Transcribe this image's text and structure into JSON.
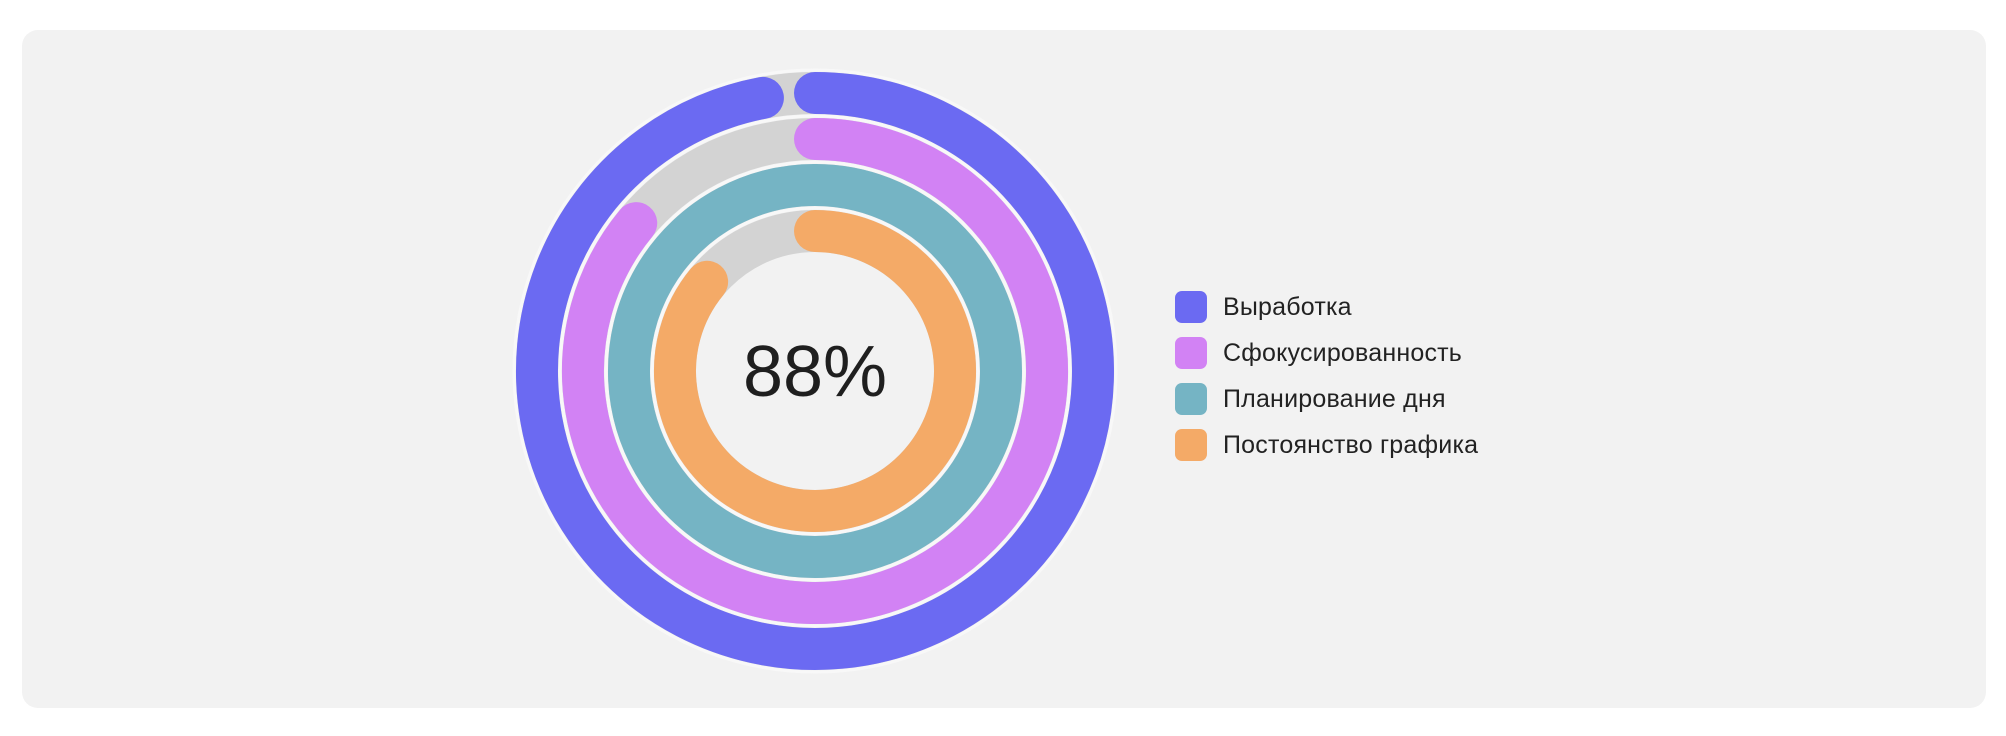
{
  "chart_data": {
    "type": "radial-bar",
    "center_label": "88%",
    "track_color": "#d3d3d3",
    "series": [
      {
        "name": "Выработка",
        "value": 97,
        "color": "#6b6af2"
      },
      {
        "name": "Сфокусированность",
        "value": 86,
        "color": "#d282f4"
      },
      {
        "name": "Планирование дня",
        "value": 103,
        "color": "#75b4c4"
      },
      {
        "name": "Постоянство графика",
        "value": 86,
        "color": "#f4aa67"
      }
    ]
  }
}
